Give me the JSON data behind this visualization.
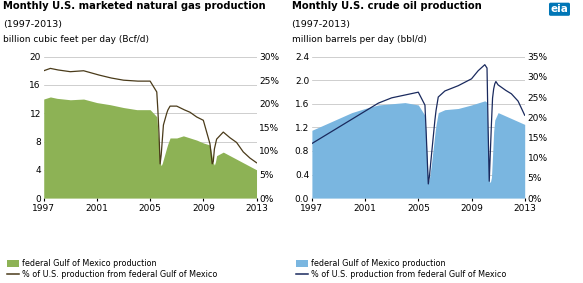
{
  "title_gas": "Monthly U.S. marketed natural gas production",
  "subtitle_gas": "(1997-2013)",
  "ylabel_gas": "billion cubic feet per day (Bcf/d)",
  "title_oil": "Monthly U.S. crude oil production",
  "subtitle_oil": "(1997-2013)",
  "ylabel_oil": "million barrels per day (bbl/d)",
  "gas_ylim": [
    0,
    20
  ],
  "gas_yticks": [
    0,
    4,
    8,
    12,
    16,
    20
  ],
  "gas_pct_ylim": [
    0,
    0.3
  ],
  "gas_pct_yticks": [
    0.0,
    0.05,
    0.1,
    0.15,
    0.2,
    0.25,
    0.3
  ],
  "oil_ylim": [
    0,
    2.4
  ],
  "oil_yticks": [
    0.0,
    0.4,
    0.8,
    1.2,
    1.6,
    2.0,
    2.4
  ],
  "oil_pct_ylim": [
    0,
    0.35
  ],
  "oil_pct_yticks": [
    0.0,
    0.05,
    0.1,
    0.15,
    0.2,
    0.25,
    0.3,
    0.35
  ],
  "xmin": 1997.0,
  "xmax": 2013.0,
  "xticks": [
    1997,
    2001,
    2005,
    2009,
    2013
  ],
  "gas_area_color": "#8db255",
  "gas_line_color": "#4a3b1a",
  "oil_area_color": "#7ab6e0",
  "oil_line_color": "#1a2a5e",
  "background_color": "#ffffff",
  "grid_color": "#bbbbbb",
  "legend_gas_area": "federal Gulf of Mexico production",
  "legend_gas_line": "% of U.S. production from federal Gulf of Mexico",
  "legend_oil_area": "federal Gulf of Mexico production",
  "legend_oil_line": "% of U.S. production from federal Gulf of Mexico"
}
